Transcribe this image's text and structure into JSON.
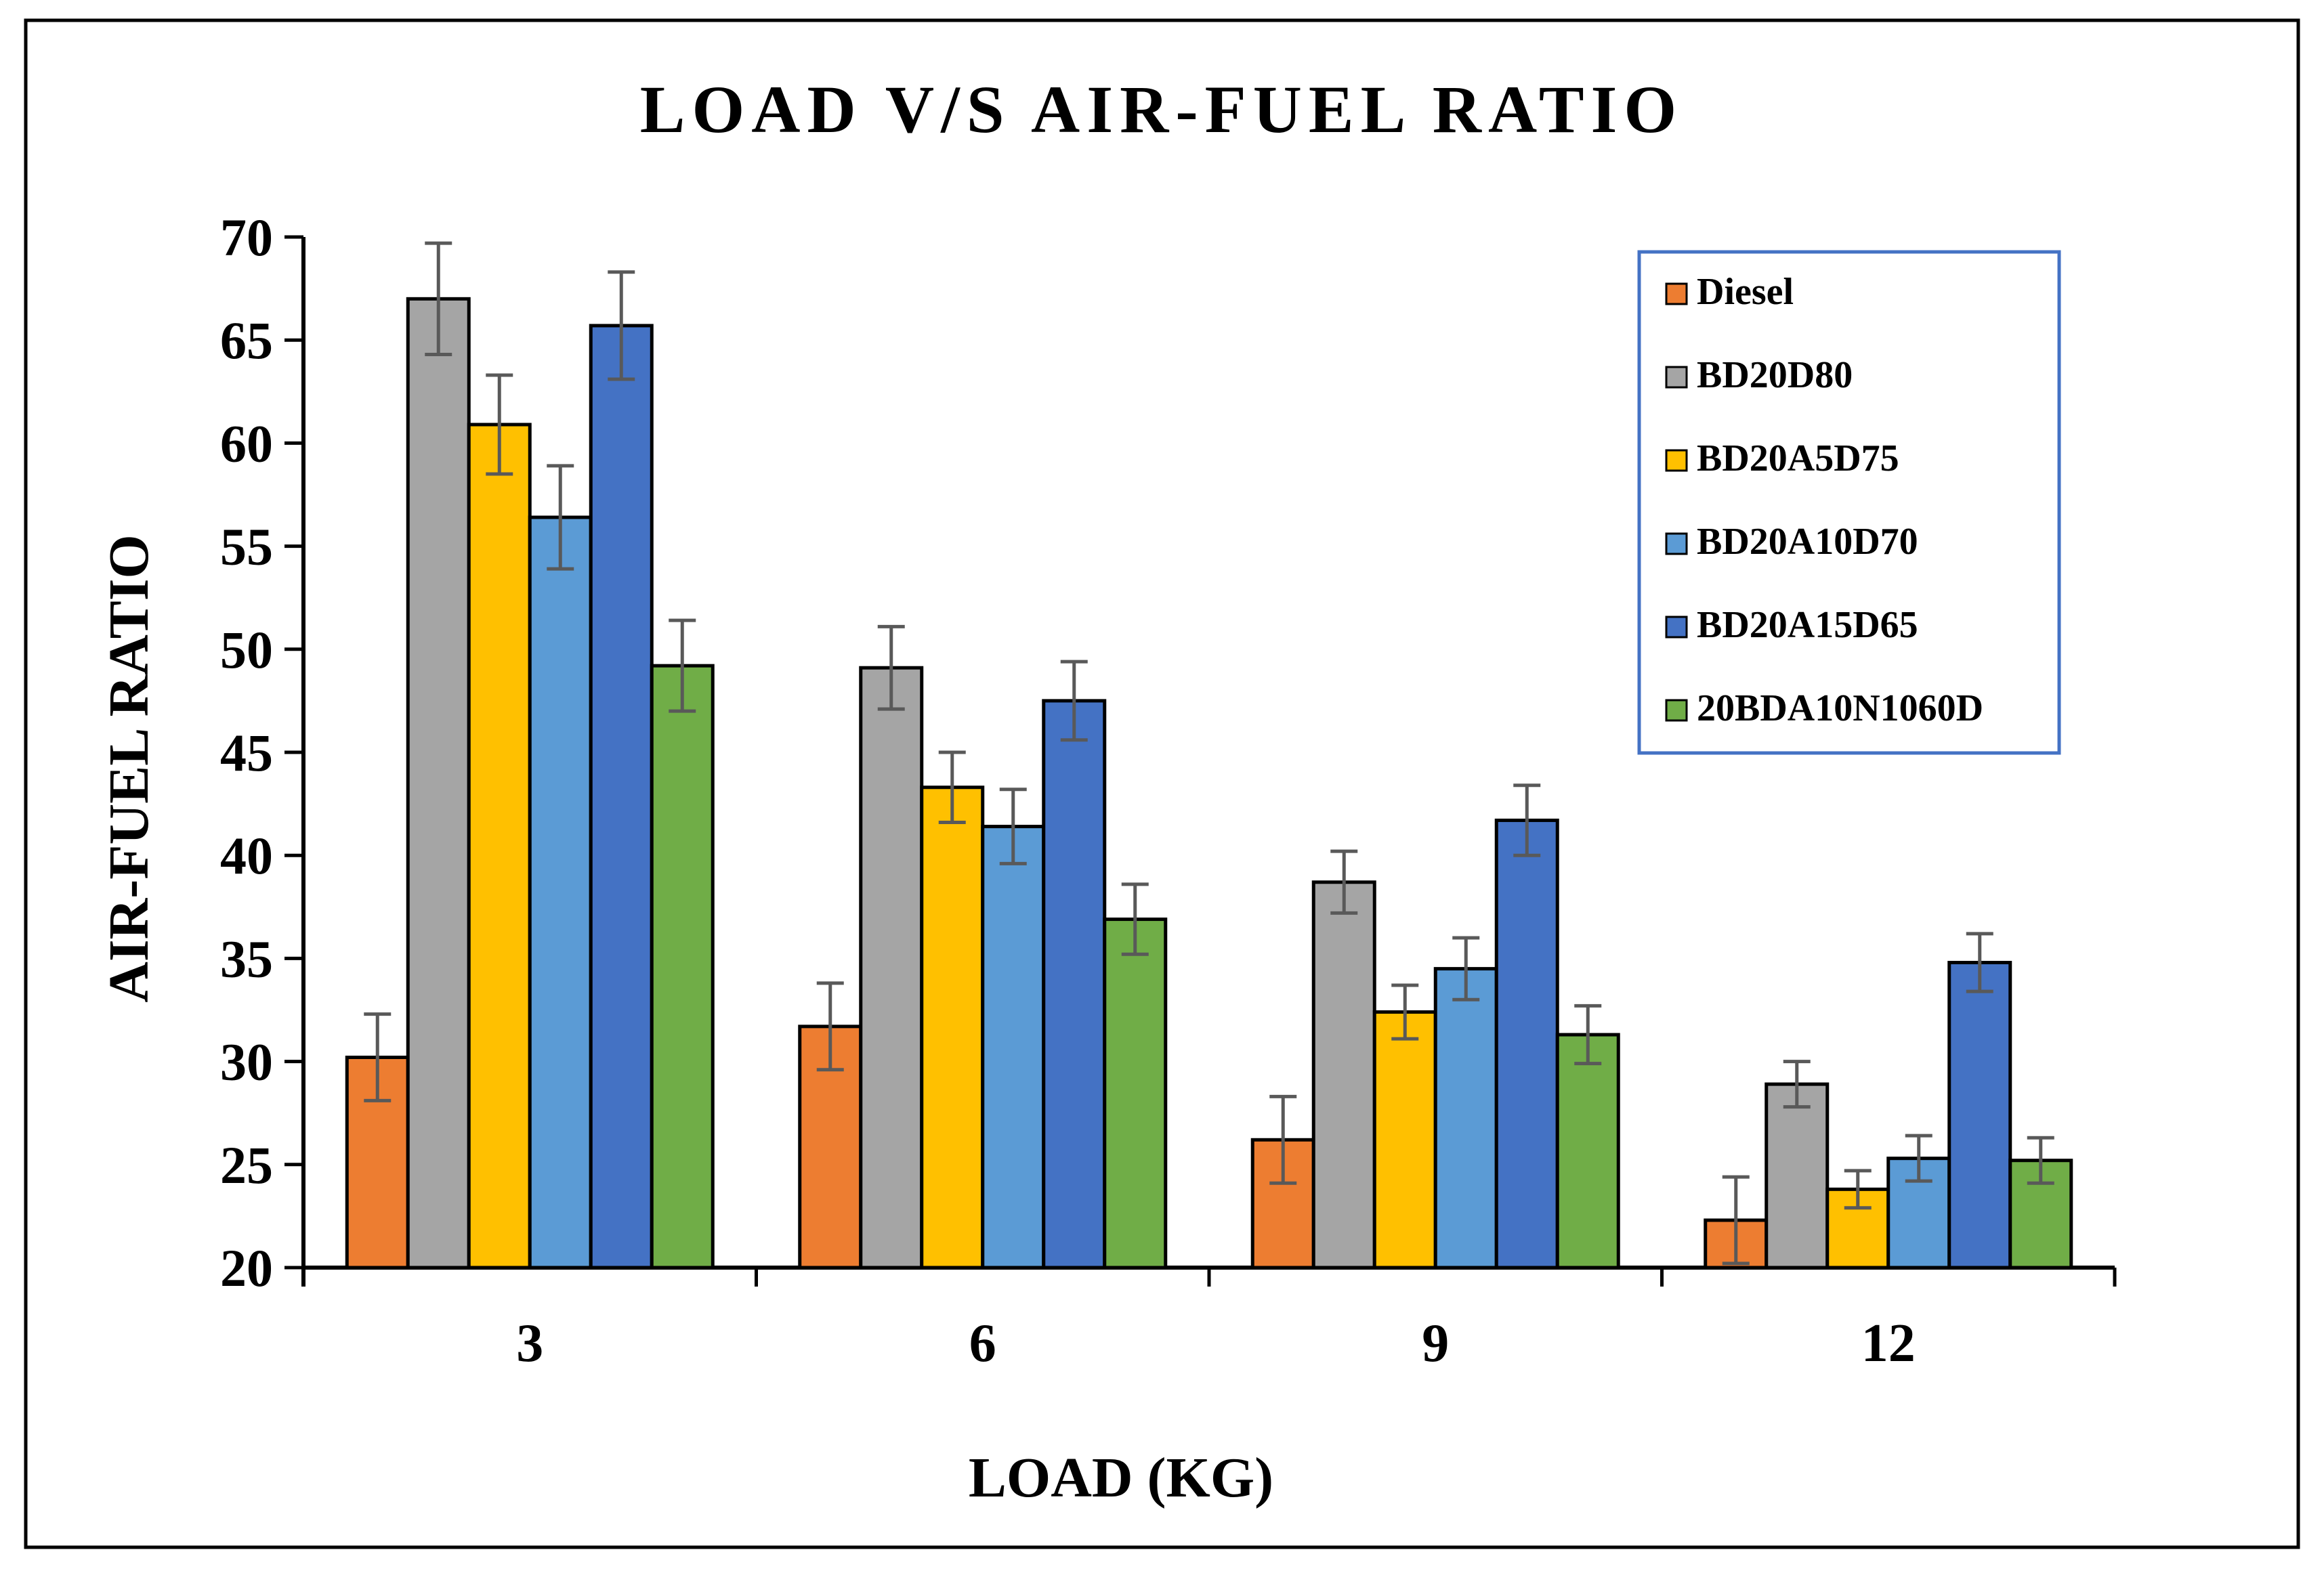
{
  "chart_data": {
    "type": "bar",
    "title": "LOAD V/S AIR-FUEL RATIO",
    "xlabel": "LOAD (KG)",
    "ylabel": "AIR-FUEL RATIO",
    "ylim": [
      20,
      70
    ],
    "yticks": [
      20,
      25,
      30,
      35,
      40,
      45,
      50,
      55,
      60,
      65,
      70
    ],
    "categories": [
      "3",
      "6",
      "9",
      "12"
    ],
    "legend_position": "top-right",
    "grid": false,
    "error_bar_color": "#595959",
    "series": [
      {
        "name": "Diesel",
        "color": "#ED7D31",
        "values": [
          30.2,
          31.7,
          26.2,
          22.3
        ],
        "errors": [
          2.1,
          2.1,
          2.1,
          2.1
        ]
      },
      {
        "name": "BD20D80",
        "color": "#A5A5A5",
        "values": [
          67.0,
          49.1,
          38.7,
          28.9
        ],
        "errors": [
          2.7,
          2.0,
          1.5,
          1.1
        ]
      },
      {
        "name": "BD20A5D75",
        "color": "#FFC000",
        "values": [
          60.9,
          43.3,
          32.4,
          23.8
        ],
        "errors": [
          2.4,
          1.7,
          1.3,
          0.9
        ]
      },
      {
        "name": "BD20A10D70",
        "color": "#5B9BD5",
        "values": [
          56.4,
          41.4,
          34.5,
          25.3
        ],
        "errors": [
          2.5,
          1.8,
          1.5,
          1.1
        ]
      },
      {
        "name": "BD20A15D65",
        "color": "#4472C4",
        "values": [
          65.7,
          47.5,
          41.7,
          34.8
        ],
        "errors": [
          2.6,
          1.9,
          1.7,
          1.4
        ]
      },
      {
        "name": "20BDA10N1060D",
        "color": "#70AD47",
        "values": [
          49.2,
          36.9,
          31.3,
          25.2
        ],
        "errors": [
          2.2,
          1.7,
          1.4,
          1.1
        ]
      }
    ]
  }
}
